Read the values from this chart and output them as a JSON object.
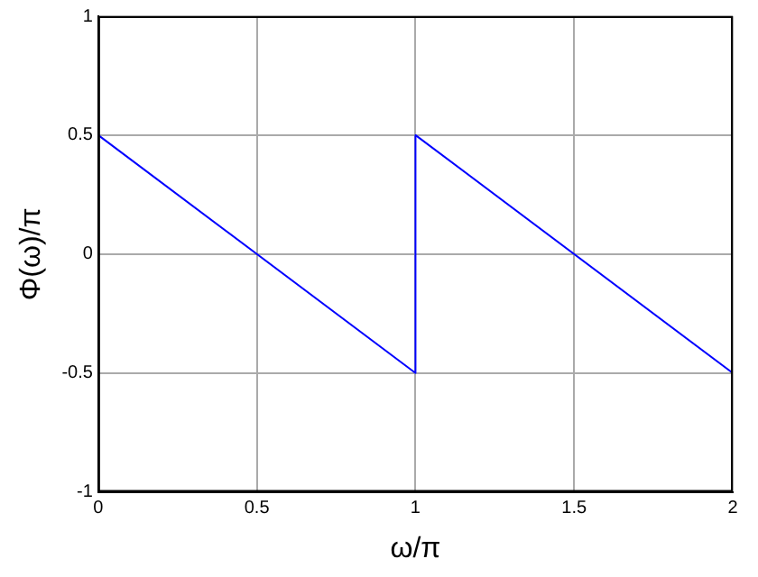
{
  "chart_data": {
    "type": "line",
    "xlabel": "ω/π",
    "ylabel": "Φ(ω)/π",
    "x": [
      0,
      1,
      1,
      2
    ],
    "series": [
      {
        "color": "#0000ff",
        "values": [
          0.5,
          -0.5,
          0.5,
          -0.5
        ]
      }
    ],
    "xlim": [
      0,
      2
    ],
    "xticks": [
      0,
      0.5,
      1,
      1.5,
      2
    ],
    "ylim": [
      -1,
      1
    ],
    "yticks": [
      -1,
      -0.5,
      0,
      0.5,
      1
    ],
    "grid": true,
    "legend": false,
    "marker": "none",
    "line_style": "solid"
  }
}
